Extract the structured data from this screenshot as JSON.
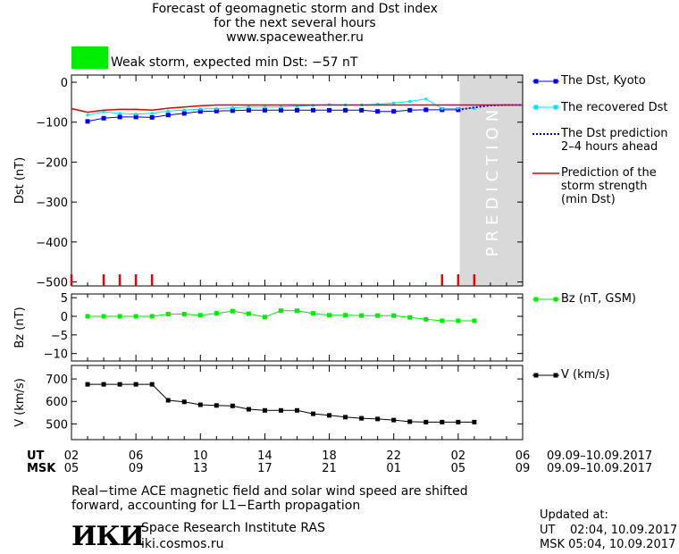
{
  "header": {
    "title_line1": "Forecast of geomagnetic storm and Dst index",
    "title_line2": "for the next several hours",
    "title_line3": "www.spaceweather.ru",
    "storm_label": "Weak storm, expected min Dst: −57 nT",
    "storm_color": "#00ee00"
  },
  "prediction_label": "PREDICTION",
  "colors": {
    "dst_kyoto": "#0000ee",
    "dst_recovered": "#00e5ff",
    "dst_prediction": "#0000cc",
    "storm_strength": "#dd0000",
    "bz": "#00ee00",
    "speed": "#000000",
    "prediction_bg": "#d9d9d9",
    "markers": "#ee0000"
  },
  "chart_data": [
    {
      "type": "line",
      "ylabel": "Dst (nT)",
      "ylim": [
        -510,
        18
      ],
      "yticks": [
        0,
        -100,
        -200,
        -300,
        -400,
        -500
      ],
      "ytick_labels": [
        "0",
        "−100",
        "−200",
        "−300",
        "−400",
        "−500"
      ],
      "xlim": [
        2,
        30
      ],
      "prediction_region": [
        26.1,
        30
      ],
      "series": [
        {
          "name": "The Dst, Kyoto",
          "x": [
            3,
            4,
            5,
            6,
            7,
            8,
            9,
            10,
            11,
            12,
            13,
            14,
            15,
            16,
            17,
            18,
            19,
            20,
            21,
            22,
            23,
            24,
            25,
            26
          ],
          "y": [
            -98,
            -90,
            -87,
            -87,
            -88,
            -82,
            -78,
            -73,
            -72,
            -71,
            -70,
            -70,
            -70,
            -70,
            -70,
            -70,
            -70,
            -70,
            -73,
            -73,
            -70,
            -69,
            -69,
            -69
          ]
        },
        {
          "name": "The recovered Dst",
          "x": [
            3,
            4,
            5,
            6,
            7,
            8,
            9,
            10,
            11,
            12,
            13,
            14,
            15,
            16,
            17,
            18,
            19,
            20,
            21,
            22,
            23,
            24,
            25,
            26,
            27
          ],
          "y": [
            -82,
            -74,
            -78,
            -80,
            -78,
            -72,
            -70,
            -67,
            -66,
            -64,
            -62,
            -62,
            -62,
            -60,
            -58,
            -56,
            -57,
            -57,
            -55,
            -52,
            -48,
            -42,
            -66,
            -66,
            -66
          ]
        },
        {
          "name": "The Dst prediction 2–4 hours ahead",
          "x": [
            26,
            27,
            28,
            29,
            30
          ],
          "y": [
            -69,
            -63,
            -58,
            -57,
            -57
          ]
        },
        {
          "name": "Prediction of the storm strength (min Dst)",
          "x": [
            2,
            3,
            4,
            5,
            6,
            7,
            8,
            9,
            10,
            11,
            12,
            13,
            14,
            15,
            16,
            17,
            18,
            19,
            20,
            21,
            22,
            23,
            24,
            25,
            26,
            27,
            28,
            29,
            30
          ],
          "y": [
            -66,
            -75,
            -70,
            -68,
            -68,
            -70,
            -65,
            -62,
            -59,
            -57,
            -57,
            -57,
            -57,
            -57,
            -57,
            -57,
            -57,
            -57,
            -57,
            -57,
            -57,
            -57,
            -57,
            -57,
            -57,
            -57,
            -57,
            -57,
            -57
          ]
        }
      ],
      "markers_x": [
        2,
        4,
        5,
        6,
        7,
        25,
        26,
        27
      ]
    },
    {
      "type": "line",
      "ylabel": "Bz (nT)",
      "ylim": [
        -12,
        6
      ],
      "yticks": [
        5,
        0,
        -5,
        -10
      ],
      "ytick_labels": [
        "5",
        "0",
        "−5",
        "−10"
      ],
      "xlim": [
        2,
        30
      ],
      "series": [
        {
          "name": "Bz (nT, GSM)",
          "x": [
            3,
            4,
            5,
            6,
            7,
            8,
            9,
            10,
            11,
            12,
            13,
            14,
            15,
            16,
            17,
            18,
            19,
            20,
            21,
            22,
            23,
            24,
            25,
            26,
            27
          ],
          "y": [
            0,
            0,
            0,
            0,
            0,
            0.6,
            0.6,
            0.3,
            0.8,
            1.4,
            0.7,
            -0.2,
            1.5,
            1.5,
            0.8,
            0.3,
            0.3,
            0.2,
            0.2,
            0.2,
            -0.3,
            -0.8,
            -1.2,
            -1.2,
            -1.2
          ]
        }
      ]
    },
    {
      "type": "line",
      "ylabel": "V (km/s)",
      "ylim": [
        430,
        760
      ],
      "yticks": [
        700,
        600,
        500
      ],
      "ytick_labels": [
        "700",
        "600",
        "500"
      ],
      "xlim": [
        2,
        30
      ],
      "series": [
        {
          "name": "V (km/s)",
          "x": [
            3,
            4,
            5,
            6,
            7,
            8,
            9,
            10,
            11,
            12,
            13,
            14,
            15,
            16,
            17,
            18,
            19,
            20,
            21,
            22,
            23,
            24,
            25,
            26,
            27
          ],
          "y": [
            676,
            676,
            676,
            676,
            676,
            605,
            598,
            585,
            582,
            580,
            565,
            560,
            560,
            560,
            545,
            538,
            530,
            525,
            522,
            517,
            510,
            508,
            508,
            508,
            508
          ]
        }
      ]
    }
  ],
  "x_axis": {
    "ut_label": "UT",
    "msk_label": "MSK",
    "ut_ticks": [
      "02",
      "06",
      "10",
      "14",
      "18",
      "22",
      "02",
      "06"
    ],
    "msk_ticks": [
      "05",
      "09",
      "13",
      "17",
      "21",
      "01",
      "05",
      "09"
    ],
    "ut_range": "09.09–10.09.2017",
    "msk_range": "09.09–10.09.2017"
  },
  "legend": {
    "kyoto": "The Dst, Kyoto",
    "recovered": "The recovered Dst",
    "pred_line1": "The Dst prediction",
    "pred_line2": "2–4 hours ahead",
    "strength_line1": "Prediction of the",
    "strength_line2": "storm strength",
    "strength_line3": "(min Dst)",
    "bz": "Bz (nT, GSM)",
    "speed": "V (km/s)"
  },
  "footer": {
    "note_line1": "Real−time ACE magnetic field and solar wind speed are shifted",
    "note_line2": "forward, accounting for L1−Earth propagation",
    "logo_text": "ИКИ",
    "institute": "Space Research Institute RAS",
    "website": "iki.cosmos.ru",
    "updated_label": "Updated at:",
    "updated_ut": "UT    02:04, 10.09.2017",
    "updated_msk": "MSK 05:04, 10.09.2017"
  }
}
